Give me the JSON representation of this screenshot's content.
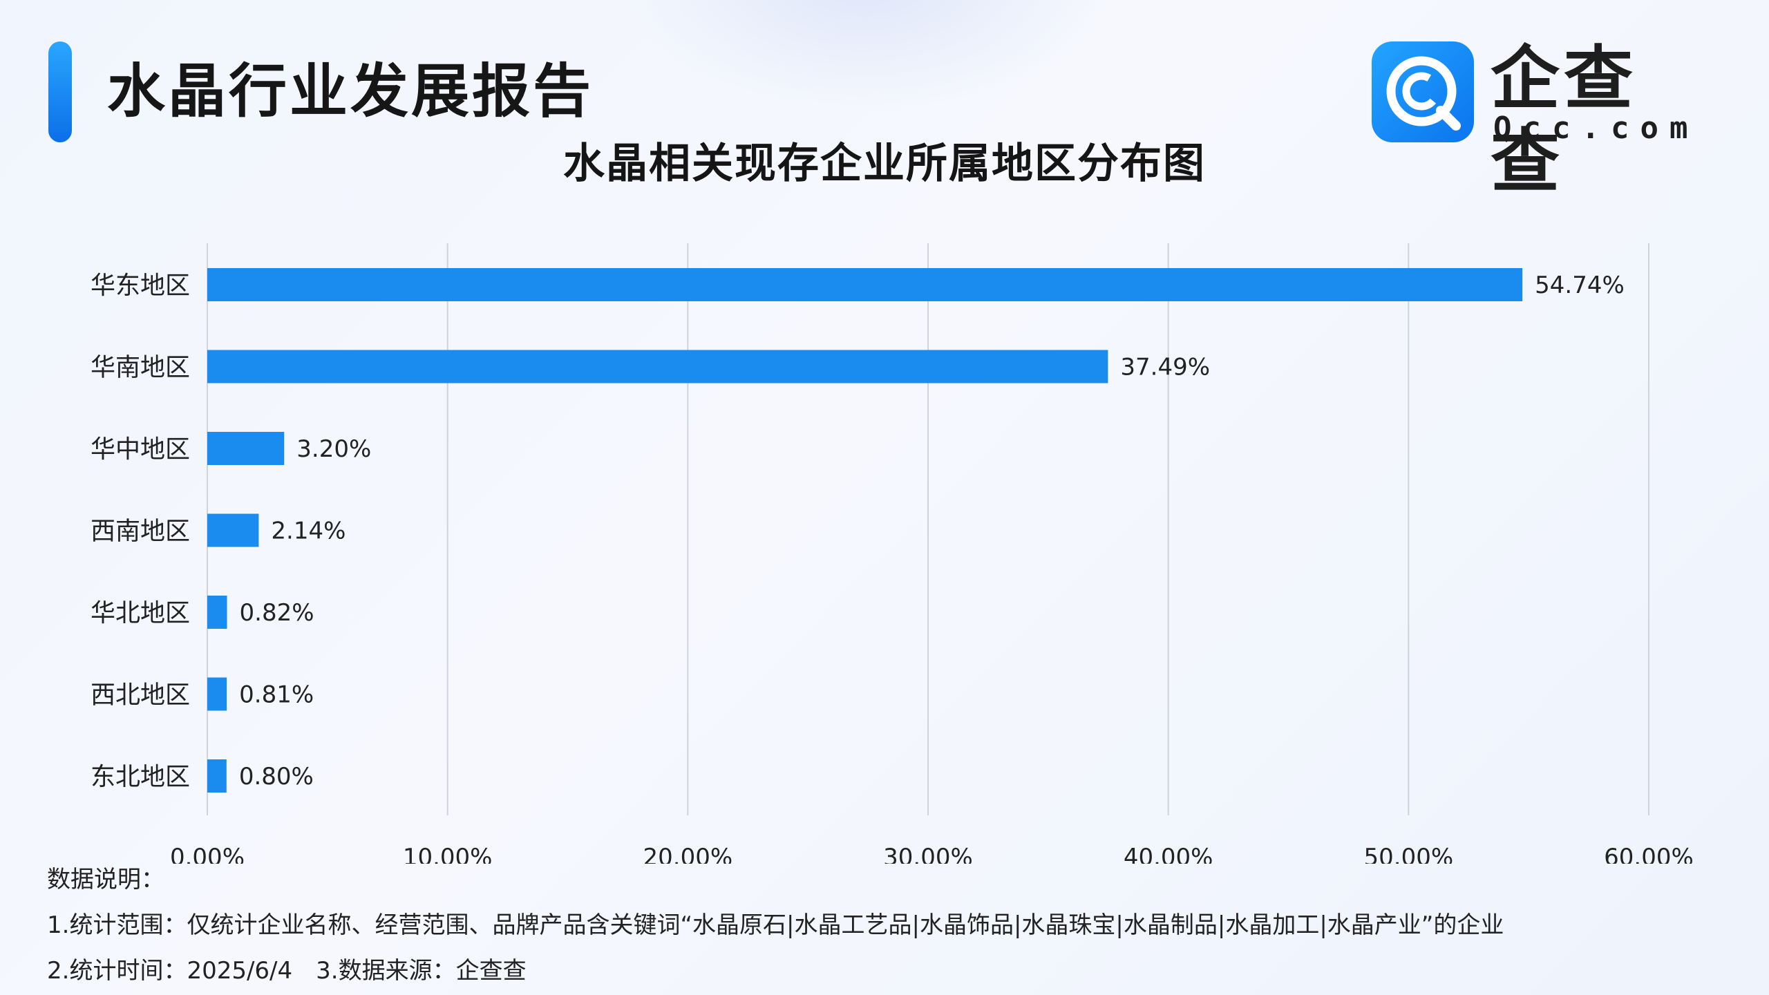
{
  "header": {
    "report_title": "水晶行业发展报告",
    "logo_cn": "企查查",
    "logo_en": "Qcc.com",
    "logo_icon": "qcc-logo-icon",
    "accent_color": "#1a8cf0"
  },
  "chart_data": {
    "type": "bar",
    "orientation": "horizontal",
    "title": "水晶相关现存企业所属地区分布图",
    "categories": [
      "华东地区",
      "华南地区",
      "华中地区",
      "西南地区",
      "华北地区",
      "西北地区",
      "东北地区"
    ],
    "values": [
      54.74,
      37.49,
      3.2,
      2.14,
      0.82,
      0.81,
      0.8
    ],
    "value_labels": [
      "54.74%",
      "37.49%",
      "3.20%",
      "2.14%",
      "0.82%",
      "0.81%",
      "0.80%"
    ],
    "xlim": [
      0,
      60
    ],
    "xticks": [
      0,
      10,
      20,
      30,
      40,
      50,
      60
    ],
    "xtick_labels": [
      "0.00%",
      "10.00%",
      "20.00%",
      "30.00%",
      "40.00%",
      "50.00%",
      "60.00%"
    ],
    "grid": "vertical",
    "bar_color": "#1a8cf0",
    "xlabel": "",
    "ylabel": ""
  },
  "notes": {
    "heading": "数据说明：",
    "line1": "1.统计范围：仅统计企业名称、经营范围、品牌产品含关键词“水晶原石|水晶工艺品|水晶饰品|水晶珠宝|水晶制品|水晶加工|水晶产业”的企业",
    "line2": "2.统计时间：2025/6/4　3.数据来源：企查查"
  }
}
